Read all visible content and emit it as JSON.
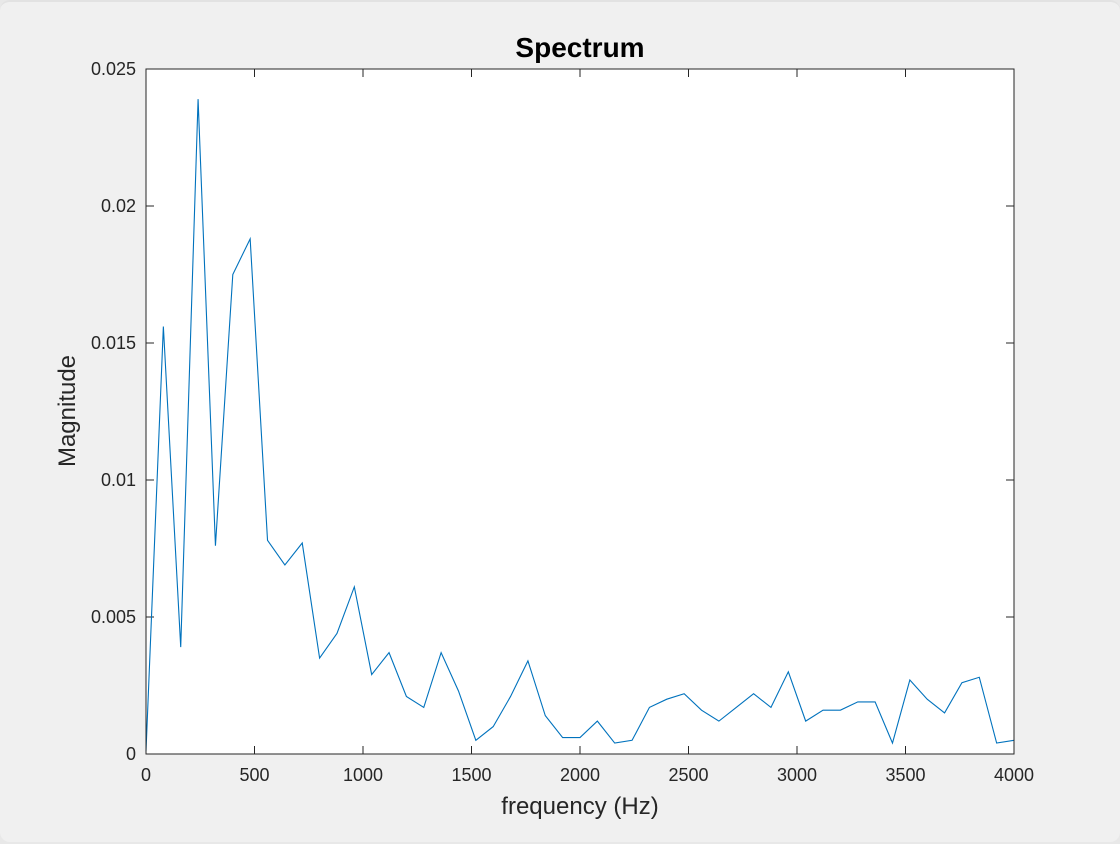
{
  "chart_data": {
    "type": "line",
    "title": "Spectrum",
    "xlabel": "frequency (Hz)",
    "ylabel": "Magnitude",
    "xlim": [
      0,
      4000
    ],
    "ylim": [
      0,
      0.025
    ],
    "xticks": [
      0,
      500,
      1000,
      1500,
      2000,
      2500,
      3000,
      3500,
      4000
    ],
    "yticks": [
      0,
      0.005,
      0.01,
      0.015,
      0.02,
      0.025
    ],
    "xtick_labels": [
      "0",
      "500",
      "1000",
      "1500",
      "2000",
      "2500",
      "3000",
      "3500",
      "4000"
    ],
    "ytick_labels": [
      "0",
      "0.005",
      "0.01",
      "0.015",
      "0.02",
      "0.025"
    ],
    "grid": false,
    "colors": {
      "line": "#0072BD",
      "axes": "#262626",
      "background": "#ffffff",
      "figure": "#f0f0f0"
    },
    "series": [
      {
        "x": [
          0,
          80,
          160,
          240,
          320,
          400,
          480,
          560,
          640,
          720,
          800,
          880,
          960,
          1040,
          1120,
          1200,
          1280,
          1360,
          1440,
          1520,
          1600,
          1680,
          1760,
          1840,
          1920,
          2000,
          2080,
          2160,
          2240,
          2320,
          2400,
          2480,
          2560,
          2640,
          2720,
          2800,
          2880,
          2960,
          3040,
          3120,
          3200,
          3280,
          3360,
          3440,
          3520,
          3600,
          3680,
          3760,
          3840,
          3920,
          4000
        ],
        "values": [
          0.0001,
          0.0156,
          0.0039,
          0.0239,
          0.0076,
          0.0175,
          0.0188,
          0.0078,
          0.0069,
          0.0077,
          0.0035,
          0.0044,
          0.0061,
          0.0029,
          0.0037,
          0.0021,
          0.0017,
          0.0037,
          0.0023,
          0.0005,
          0.001,
          0.0021,
          0.0034,
          0.0014,
          0.0006,
          0.0006,
          0.0012,
          0.0004,
          0.0005,
          0.0017,
          0.002,
          0.0022,
          0.0016,
          0.0012,
          0.0017,
          0.0022,
          0.0017,
          0.003,
          0.0012,
          0.0016,
          0.0016,
          0.0019,
          0.0019,
          0.0004,
          0.0027,
          0.002,
          0.0015,
          0.0026,
          0.0028,
          0.0004,
          0.0005
        ]
      }
    ]
  }
}
